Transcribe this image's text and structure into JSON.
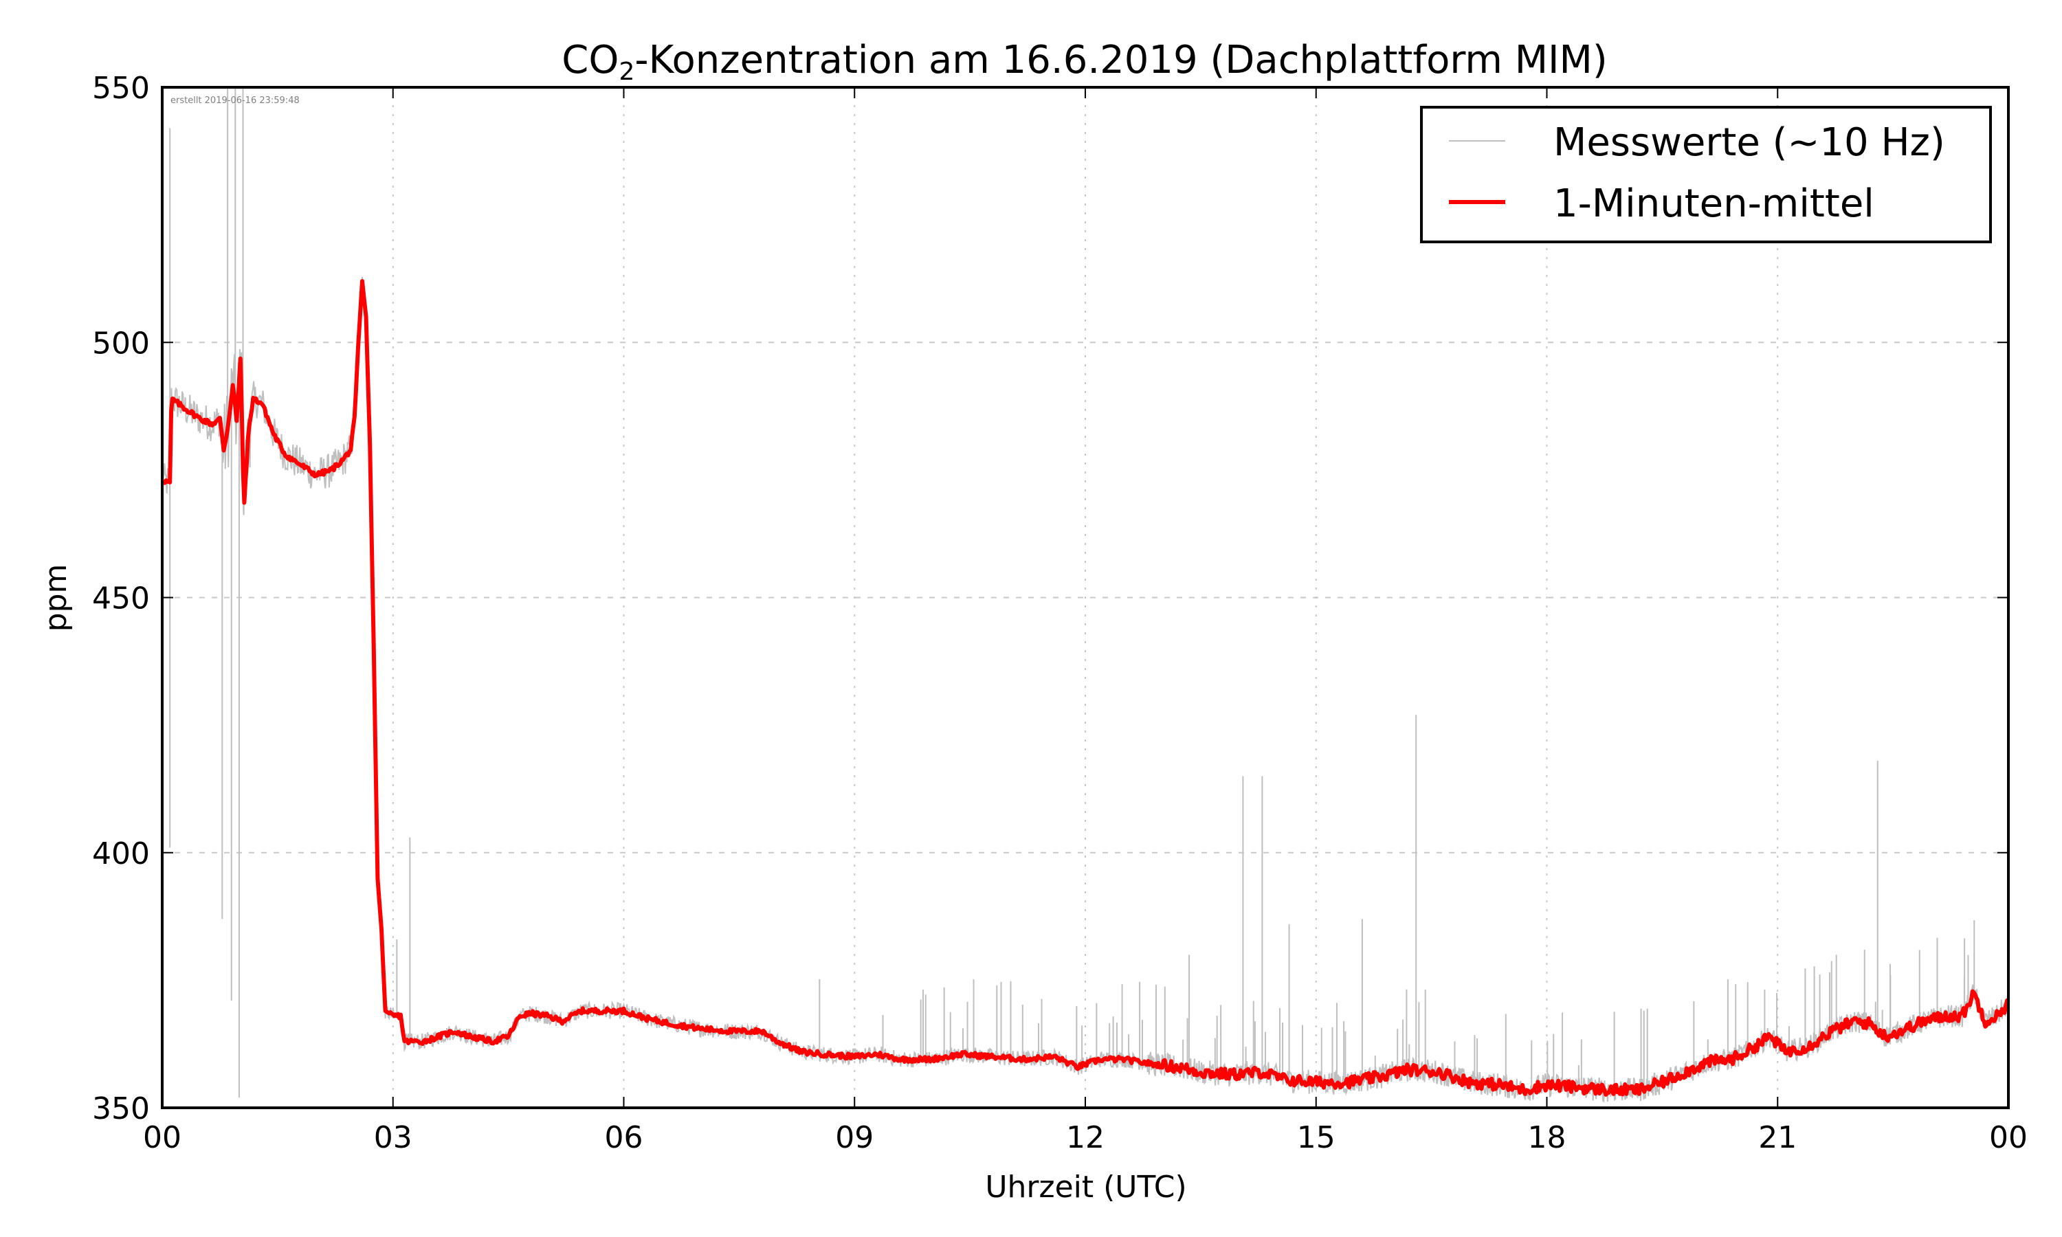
{
  "chart_data": {
    "type": "line",
    "title_main": "CO",
    "title_sub": "2",
    "title_rest": "-Konzentration am 16.6.2019 (Dachplattform MIM)",
    "title": "CO₂-Konzentration am 16.6.2019 (Dachplattform MIM)",
    "xlabel": "Uhrzeit (UTC)",
    "ylabel": "ppm",
    "xlim_hours": [
      0,
      24
    ],
    "ylim": [
      350,
      550
    ],
    "xticks": [
      {
        "hour": 0,
        "label": "00"
      },
      {
        "hour": 3,
        "label": "03"
      },
      {
        "hour": 6,
        "label": "06"
      },
      {
        "hour": 9,
        "label": "09"
      },
      {
        "hour": 12,
        "label": "12"
      },
      {
        "hour": 15,
        "label": "15"
      },
      {
        "hour": 18,
        "label": "18"
      },
      {
        "hour": 21,
        "label": "21"
      },
      {
        "hour": 24,
        "label": "00"
      }
    ],
    "yticks": [
      {
        "value": 350,
        "label": "350"
      },
      {
        "value": 400,
        "label": "400"
      },
      {
        "value": 450,
        "label": "450"
      },
      {
        "value": 500,
        "label": "500"
      },
      {
        "value": 550,
        "label": "550"
      }
    ],
    "grid": true,
    "legend_position": "top-right",
    "annotation": "erstellt 2019-06-16 23:59:48",
    "series": [
      {
        "name": "Messwerte (~10 Hz)",
        "color": "#bfbfbf",
        "description": "raw measurements, noisy around the 1-minute mean with isolated spikes",
        "spikes": [
          {
            "hour": 0.1,
            "value": 542
          },
          {
            "hour": 0.1,
            "value": 401
          },
          {
            "hour": 0.78,
            "value": 387
          },
          {
            "hour": 0.85,
            "value": 550
          },
          {
            "hour": 0.9,
            "value": 371
          },
          {
            "hour": 0.95,
            "value": 550
          },
          {
            "hour": 1.0,
            "value": 352
          },
          {
            "hour": 1.05,
            "value": 550
          },
          {
            "hour": 3.05,
            "value": 383
          },
          {
            "hour": 3.22,
            "value": 403
          },
          {
            "hour": 10.85,
            "value": 374
          },
          {
            "hour": 13.35,
            "value": 380
          },
          {
            "hour": 14.05,
            "value": 415
          },
          {
            "hour": 14.3,
            "value": 415
          },
          {
            "hour": 14.65,
            "value": 386
          },
          {
            "hour": 15.6,
            "value": 387
          },
          {
            "hour": 16.3,
            "value": 427
          },
          {
            "hour": 22.3,
            "value": 418
          }
        ]
      },
      {
        "name": "1-Minuten-mittel",
        "color": "#ff0000",
        "points": [
          [
            0.0,
            473
          ],
          [
            0.1,
            472.5
          ],
          [
            0.12,
            489
          ],
          [
            0.3,
            487
          ],
          [
            0.5,
            485
          ],
          [
            0.65,
            484
          ],
          [
            0.75,
            485
          ],
          [
            0.8,
            479
          ],
          [
            0.85,
            483
          ],
          [
            0.92,
            492
          ],
          [
            0.97,
            484
          ],
          [
            1.02,
            498
          ],
          [
            1.06,
            467
          ],
          [
            1.12,
            482
          ],
          [
            1.18,
            489
          ],
          [
            1.3,
            488
          ],
          [
            1.45,
            482
          ],
          [
            1.6,
            478
          ],
          [
            1.8,
            476
          ],
          [
            2.0,
            474
          ],
          [
            2.2,
            475
          ],
          [
            2.35,
            477
          ],
          [
            2.45,
            479
          ],
          [
            2.5,
            485
          ],
          [
            2.55,
            500
          ],
          [
            2.6,
            512
          ],
          [
            2.65,
            505
          ],
          [
            2.7,
            480
          ],
          [
            2.75,
            440
          ],
          [
            2.8,
            395
          ],
          [
            2.85,
            385
          ],
          [
            2.9,
            369
          ],
          [
            3.0,
            368
          ],
          [
            3.1,
            368
          ],
          [
            3.15,
            363
          ],
          [
            3.4,
            363
          ],
          [
            3.6,
            364
          ],
          [
            3.8,
            365
          ],
          [
            4.0,
            364
          ],
          [
            4.3,
            363
          ],
          [
            4.5,
            364
          ],
          [
            4.65,
            368
          ],
          [
            4.8,
            368.5
          ],
          [
            5.0,
            368
          ],
          [
            5.2,
            367
          ],
          [
            5.45,
            369
          ],
          [
            5.75,
            369
          ],
          [
            6.0,
            369
          ],
          [
            6.3,
            367.5
          ],
          [
            6.6,
            366.5
          ],
          [
            7.0,
            365.5
          ],
          [
            7.4,
            365
          ],
          [
            7.8,
            365
          ],
          [
            8.0,
            363
          ],
          [
            8.3,
            361
          ],
          [
            8.6,
            360.5
          ],
          [
            9.0,
            360
          ],
          [
            9.3,
            360.5
          ],
          [
            9.6,
            359.5
          ],
          [
            10.0,
            359.5
          ],
          [
            10.4,
            360.5
          ],
          [
            10.8,
            360
          ],
          [
            11.2,
            359.5
          ],
          [
            11.6,
            360
          ],
          [
            11.9,
            358
          ],
          [
            12.2,
            359.5
          ],
          [
            12.5,
            359.5
          ],
          [
            12.9,
            358.5
          ],
          [
            13.2,
            358
          ],
          [
            13.5,
            357
          ],
          [
            13.9,
            356.5
          ],
          [
            14.3,
            357
          ],
          [
            14.6,
            355.5
          ],
          [
            15.0,
            355
          ],
          [
            15.4,
            355
          ],
          [
            15.8,
            356
          ],
          [
            16.2,
            357.5
          ],
          [
            16.6,
            357
          ],
          [
            17.0,
            355
          ],
          [
            17.4,
            354.5
          ],
          [
            17.7,
            353.5
          ],
          [
            18.0,
            354.5
          ],
          [
            18.4,
            354
          ],
          [
            18.8,
            353.5
          ],
          [
            19.2,
            353.5
          ],
          [
            19.5,
            355
          ],
          [
            19.8,
            357
          ],
          [
            20.1,
            359
          ],
          [
            20.4,
            359.5
          ],
          [
            20.6,
            361
          ],
          [
            20.9,
            364
          ],
          [
            21.1,
            361
          ],
          [
            21.4,
            362
          ],
          [
            21.7,
            365
          ],
          [
            22.0,
            367
          ],
          [
            22.2,
            366.5
          ],
          [
            22.4,
            364
          ],
          [
            22.6,
            365
          ],
          [
            22.9,
            367
          ],
          [
            23.2,
            368
          ],
          [
            23.4,
            368
          ],
          [
            23.55,
            372.5
          ],
          [
            23.7,
            367
          ],
          [
            23.85,
            368
          ],
          [
            24.0,
            370.5
          ]
        ]
      }
    ]
  }
}
